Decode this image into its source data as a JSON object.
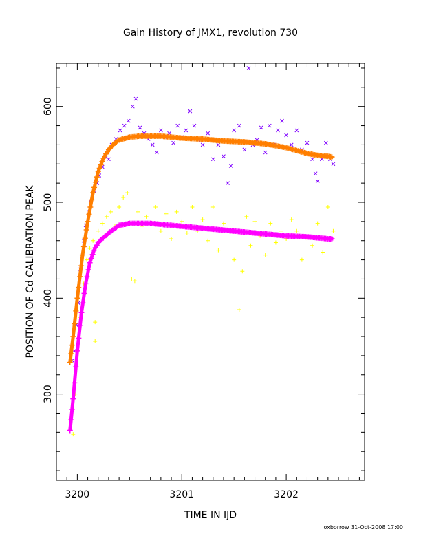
{
  "chart_data": {
    "type": "scatter",
    "title": "Gain History of JMX1, revolution 730",
    "xlabel": "TIME IN IJD",
    "ylabel": "POSITION OF Cd CALIBRATION PEAK",
    "xlim": [
      3199.8,
      3202.75
    ],
    "ylim": [
      210,
      645
    ],
    "x_ticks": [
      "3200",
      "3201",
      "3202"
    ],
    "y_ticks": [
      "300",
      "400",
      "500",
      "600"
    ],
    "credit": "oxborrow 31-Oct-2008 17:00",
    "grid": false,
    "series": [
      {
        "marker": "x",
        "color": "#7f00ff",
        "points": [
          [
            3199.95,
            335
          ],
          [
            3199.97,
            345
          ],
          [
            3199.99,
            372
          ],
          [
            3200.01,
            395
          ],
          [
            3200.03,
            430
          ],
          [
            3200.06,
            460
          ],
          [
            3200.08,
            476
          ],
          [
            3200.11,
            490
          ],
          [
            3200.13,
            500
          ],
          [
            3200.16,
            512
          ],
          [
            3200.19,
            520
          ],
          [
            3200.21,
            528
          ],
          [
            3200.24,
            537
          ],
          [
            3200.27,
            548
          ],
          [
            3200.3,
            545
          ],
          [
            3200.33,
            560
          ],
          [
            3200.37,
            566
          ],
          [
            3200.41,
            575
          ],
          [
            3200.45,
            580
          ],
          [
            3200.49,
            585
          ],
          [
            3200.53,
            600
          ],
          [
            3200.56,
            608
          ],
          [
            3200.6,
            578
          ],
          [
            3200.64,
            572
          ],
          [
            3200.68,
            566
          ],
          [
            3200.72,
            560
          ],
          [
            3200.76,
            552
          ],
          [
            3200.8,
            575
          ],
          [
            3200.84,
            568
          ],
          [
            3200.88,
            572
          ],
          [
            3200.92,
            562
          ],
          [
            3200.96,
            580
          ],
          [
            3201.0,
            568
          ],
          [
            3201.04,
            575
          ],
          [
            3201.08,
            595
          ],
          [
            3201.12,
            580
          ],
          [
            3201.16,
            565
          ],
          [
            3201.2,
            560
          ],
          [
            3201.25,
            572
          ],
          [
            3201.3,
            545
          ],
          [
            3201.35,
            560
          ],
          [
            3201.4,
            548
          ],
          [
            3201.44,
            520
          ],
          [
            3201.47,
            538
          ],
          [
            3201.5,
            575
          ],
          [
            3201.55,
            580
          ],
          [
            3201.6,
            555
          ],
          [
            3201.64,
            640
          ],
          [
            3201.68,
            560
          ],
          [
            3201.72,
            565
          ],
          [
            3201.76,
            578
          ],
          [
            3201.8,
            552
          ],
          [
            3201.84,
            580
          ],
          [
            3201.88,
            560
          ],
          [
            3201.92,
            575
          ],
          [
            3201.96,
            585
          ],
          [
            3202.0,
            570
          ],
          [
            3202.05,
            560
          ],
          [
            3202.1,
            575
          ],
          [
            3202.15,
            555
          ],
          [
            3202.2,
            562
          ],
          [
            3202.25,
            545
          ],
          [
            3202.28,
            530
          ],
          [
            3202.3,
            522
          ],
          [
            3202.34,
            545
          ],
          [
            3202.38,
            562
          ],
          [
            3202.42,
            545
          ],
          [
            3202.45,
            540
          ]
        ]
      },
      {
        "marker": "+",
        "color": "#ffff00",
        "points": [
          [
            3199.94,
            335
          ],
          [
            3199.96,
            258
          ],
          [
            3199.98,
            300
          ],
          [
            3200.0,
            345
          ],
          [
            3200.03,
            380
          ],
          [
            3200.06,
            415
          ],
          [
            3200.09,
            440
          ],
          [
            3200.12,
            452
          ],
          [
            3200.15,
            460
          ],
          [
            3200.17,
            375
          ],
          [
            3200.17,
            355
          ],
          [
            3200.2,
            470
          ],
          [
            3200.24,
            478
          ],
          [
            3200.28,
            485
          ],
          [
            3200.32,
            490
          ],
          [
            3200.36,
            475
          ],
          [
            3200.4,
            495
          ],
          [
            3200.44,
            505
          ],
          [
            3200.48,
            510
          ],
          [
            3200.52,
            420
          ],
          [
            3200.55,
            418
          ],
          [
            3200.58,
            490
          ],
          [
            3200.62,
            475
          ],
          [
            3200.66,
            485
          ],
          [
            3200.7,
            478
          ],
          [
            3200.75,
            495
          ],
          [
            3200.8,
            470
          ],
          [
            3200.85,
            488
          ],
          [
            3200.9,
            462
          ],
          [
            3200.95,
            490
          ],
          [
            3201.0,
            480
          ],
          [
            3201.05,
            468
          ],
          [
            3201.1,
            495
          ],
          [
            3201.15,
            470
          ],
          [
            3201.2,
            482
          ],
          [
            3201.25,
            460
          ],
          [
            3201.3,
            495
          ],
          [
            3201.35,
            450
          ],
          [
            3201.4,
            478
          ],
          [
            3201.45,
            470
          ],
          [
            3201.5,
            440
          ],
          [
            3201.55,
            388
          ],
          [
            3201.58,
            428
          ],
          [
            3201.62,
            485
          ],
          [
            3201.66,
            455
          ],
          [
            3201.7,
            480
          ],
          [
            3201.75,
            465
          ],
          [
            3201.8,
            445
          ],
          [
            3201.85,
            478
          ],
          [
            3201.9,
            458
          ],
          [
            3201.95,
            470
          ],
          [
            3202.0,
            462
          ],
          [
            3202.05,
            482
          ],
          [
            3202.1,
            470
          ],
          [
            3202.15,
            440
          ],
          [
            3202.2,
            462
          ],
          [
            3202.25,
            455
          ],
          [
            3202.3,
            478
          ],
          [
            3202.35,
            448
          ],
          [
            3202.4,
            495
          ],
          [
            3202.45,
            470
          ]
        ]
      }
    ],
    "curves": [
      {
        "marker": "+",
        "color": "#ff7f00",
        "points": [
          [
            3199.93,
            333
          ],
          [
            3199.96,
            360
          ],
          [
            3200.0,
            400
          ],
          [
            3200.05,
            445
          ],
          [
            3200.1,
            480
          ],
          [
            3200.15,
            510
          ],
          [
            3200.2,
            532
          ],
          [
            3200.25,
            546
          ],
          [
            3200.3,
            555
          ],
          [
            3200.35,
            561
          ],
          [
            3200.4,
            565
          ],
          [
            3200.5,
            568
          ],
          [
            3200.6,
            569
          ],
          [
            3200.7,
            569
          ],
          [
            3200.8,
            569
          ],
          [
            3200.9,
            568
          ],
          [
            3201.0,
            567
          ],
          [
            3201.2,
            566
          ],
          [
            3201.4,
            564
          ],
          [
            3201.6,
            563
          ],
          [
            3201.8,
            561
          ],
          [
            3201.9,
            559
          ],
          [
            3202.0,
            557
          ],
          [
            3202.1,
            554
          ],
          [
            3202.2,
            551
          ],
          [
            3202.3,
            549
          ],
          [
            3202.4,
            548
          ],
          [
            3202.45,
            547
          ]
        ]
      },
      {
        "marker": "+",
        "color": "#ff00ff",
        "points": [
          [
            3199.93,
            262
          ],
          [
            3199.96,
            295
          ],
          [
            3200.0,
            345
          ],
          [
            3200.04,
            385
          ],
          [
            3200.08,
            415
          ],
          [
            3200.12,
            437
          ],
          [
            3200.16,
            450
          ],
          [
            3200.2,
            458
          ],
          [
            3200.25,
            463
          ],
          [
            3200.3,
            468
          ],
          [
            3200.35,
            472
          ],
          [
            3200.4,
            476
          ],
          [
            3200.5,
            478
          ],
          [
            3200.6,
            478
          ],
          [
            3200.7,
            478
          ],
          [
            3200.8,
            477
          ],
          [
            3200.9,
            476
          ],
          [
            3201.0,
            475
          ],
          [
            3201.2,
            473
          ],
          [
            3201.4,
            471
          ],
          [
            3201.6,
            469
          ],
          [
            3201.8,
            467
          ],
          [
            3202.0,
            465
          ],
          [
            3202.2,
            464
          ],
          [
            3202.4,
            462
          ],
          [
            3202.45,
            462
          ]
        ]
      }
    ]
  }
}
